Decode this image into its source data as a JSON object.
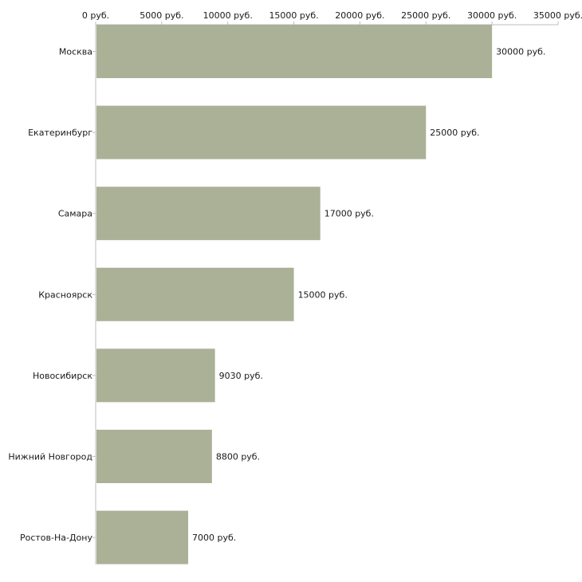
{
  "chart_data": {
    "type": "bar",
    "orientation": "horizontal",
    "title": "",
    "xlabel": "",
    "ylabel": "",
    "categories": [
      "Москва",
      "Екатеринбург",
      "Самара",
      "Красноярск",
      "Новосибирск",
      "Нижний Новгород",
      "Ростов-На-Дону"
    ],
    "values": [
      30000,
      25000,
      17000,
      15000,
      9030,
      8800,
      7000
    ],
    "value_labels": [
      "30000 руб.",
      "25000 руб.",
      "17000 руб.",
      "15000 руб.",
      "9030 руб.",
      "8800 руб.",
      "7000 руб."
    ],
    "xlim": [
      0,
      35000
    ],
    "ticks": [
      0,
      5000,
      10000,
      15000,
      20000,
      25000,
      30000,
      35000
    ],
    "tick_labels": [
      "0 руб.",
      "5000 руб.",
      "10000 руб.",
      "15000 руб.",
      "20000 руб.",
      "25000 руб.",
      "30000 руб.",
      "35000 руб."
    ],
    "axis_position": "top",
    "grid": false,
    "bar_color": "#abb197",
    "axis_color": "#bdbdbd"
  }
}
